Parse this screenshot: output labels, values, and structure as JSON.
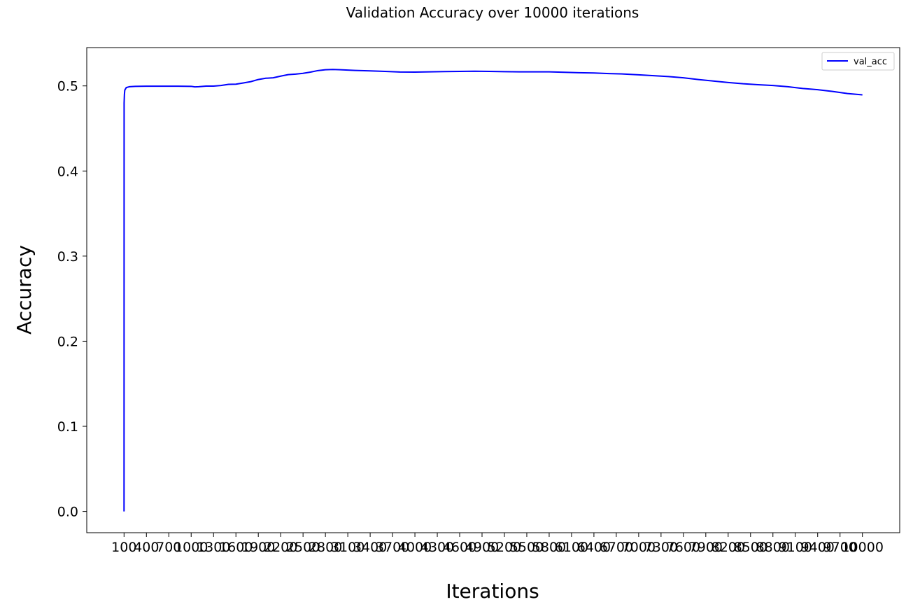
{
  "chart_data": {
    "type": "line",
    "title": "Validation Accuracy over 10000 iterations",
    "xlabel": "Iterations",
    "ylabel": "Accuracy",
    "ylim": [
      -0.025,
      0.545
    ],
    "xlim": [
      -400,
      10500
    ],
    "x_ticks": [
      100,
      400,
      700,
      1000,
      1300,
      1600,
      1900,
      2200,
      2500,
      2800,
      3100,
      3400,
      3700,
      4000,
      4300,
      4600,
      4900,
      5200,
      5500,
      5800,
      6100,
      6400,
      6700,
      7000,
      7300,
      7600,
      7900,
      8200,
      8500,
      8800,
      9100,
      9400,
      9700,
      10000
    ],
    "x_tick_labels": [
      "100",
      "400",
      "700",
      "1000",
      "1300",
      "1600",
      "1900",
      "2200",
      "2500",
      "2800",
      "3100",
      "3400",
      "3700",
      "4000",
      "4300",
      "4600",
      "4900",
      "5200",
      "5500",
      "5800",
      "6100",
      "6400",
      "6700",
      "7000",
      "7300",
      "7600",
      "7900",
      "8200",
      "8500",
      "8800",
      "9100",
      "9400",
      "9700",
      "10000"
    ],
    "y_ticks": [
      0.0,
      0.1,
      0.2,
      0.3,
      0.4,
      0.5
    ],
    "y_tick_labels": [
      "0.0",
      "0.1",
      "0.2",
      "0.3",
      "0.4",
      "0.5"
    ],
    "legend_position": "top-right",
    "grid": false,
    "series": [
      {
        "name": "val_acc",
        "color": "#0000ff",
        "x": [
          100,
          101,
          105,
          110,
          130,
          170,
          250,
          400,
          600,
          800,
          1000,
          1050,
          1100,
          1200,
          1300,
          1400,
          1500,
          1600,
          1700,
          1800,
          1900,
          2000,
          2100,
          2200,
          2300,
          2400,
          2500,
          2600,
          2700,
          2800,
          2900,
          3000,
          3200,
          3400,
          3600,
          3800,
          4000,
          4200,
          4400,
          4600,
          4800,
          5000,
          5200,
          5400,
          5600,
          5800,
          6000,
          6200,
          6400,
          6600,
          6800,
          7000,
          7200,
          7400,
          7600,
          7800,
          8000,
          8200,
          8400,
          8600,
          8800,
          9000,
          9200,
          9400,
          9600,
          9800,
          10000
        ],
        "values": [
          0.0,
          0.48,
          0.49,
          0.495,
          0.498,
          0.499,
          0.4995,
          0.4997,
          0.4997,
          0.4997,
          0.4995,
          0.4988,
          0.499,
          0.4998,
          0.4998,
          0.5005,
          0.5018,
          0.502,
          0.5035,
          0.505,
          0.5075,
          0.509,
          0.5095,
          0.5115,
          0.5132,
          0.5138,
          0.5148,
          0.5162,
          0.518,
          0.519,
          0.5193,
          0.519,
          0.5182,
          0.5177,
          0.517,
          0.5163,
          0.5162,
          0.5165,
          0.5168,
          0.517,
          0.5172,
          0.517,
          0.5167,
          0.5165,
          0.5165,
          0.5165,
          0.516,
          0.5155,
          0.5152,
          0.5145,
          0.514,
          0.513,
          0.512,
          0.511,
          0.5095,
          0.5075,
          0.5057,
          0.504,
          0.5025,
          0.5014,
          0.5005,
          0.499,
          0.497,
          0.4955,
          0.4935,
          0.491,
          0.4895
        ]
      }
    ]
  }
}
